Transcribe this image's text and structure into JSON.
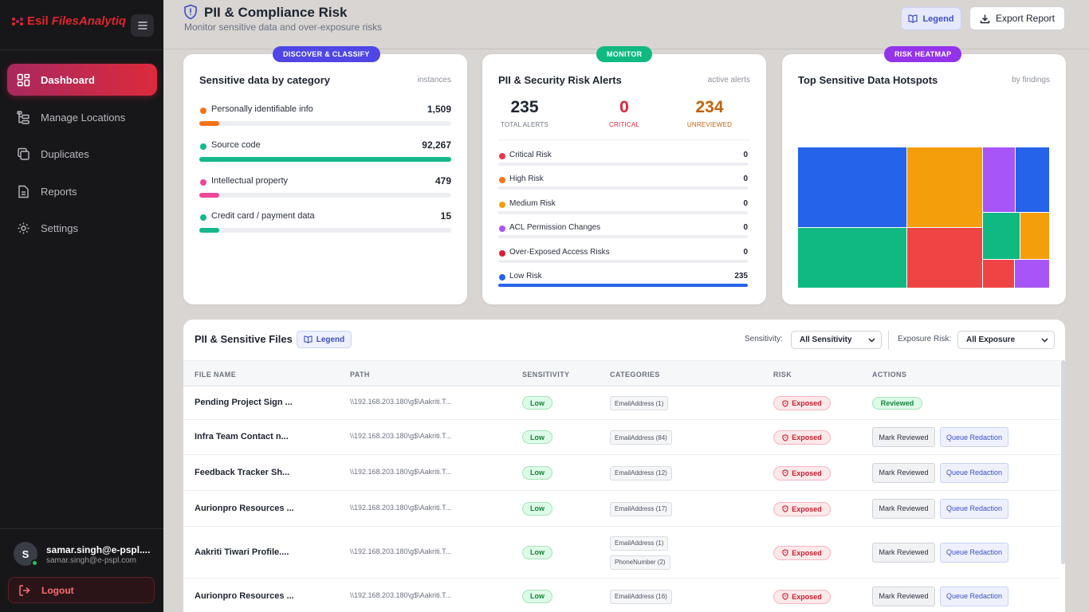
{
  "sidebar": {
    "logo_esi": "Esil",
    "logo_brand": "FilesAnalytiq",
    "nav": [
      {
        "label": "Dashboard",
        "active": true
      },
      {
        "label": "Manage Locations"
      },
      {
        "label": "Duplicates"
      },
      {
        "label": "Reports"
      },
      {
        "label": "Settings"
      }
    ],
    "user": {
      "initial": "S",
      "name": "samar.singh@e-pspl....",
      "email": "samar.singh@e-pspl.com"
    },
    "logout_label": "Logout"
  },
  "header": {
    "title": "PII & Compliance Risk",
    "subtitle": "Monitor sensitive data and over-exposure risks",
    "legend_label": "Legend",
    "export_label": "Export Report"
  },
  "cards": {
    "classify": {
      "pill": "DISCOVER & CLASSIFY",
      "title": "Sensitive data by category",
      "hint": "instances",
      "items": [
        {
          "label": "Personally identifiable info",
          "value": "1,509",
          "fraction": 0.08,
          "color": "#f97316"
        },
        {
          "label": "Source code",
          "value": "92,267",
          "fraction": 1.0,
          "color": "#14b88a"
        },
        {
          "label": "Intellectual property",
          "value": "479",
          "fraction": 0.08,
          "color": "#ec4899"
        },
        {
          "label": "Credit card / payment data",
          "value": "15",
          "fraction": 0.08,
          "color": "#14b88a"
        }
      ]
    },
    "monitor": {
      "pill": "MONITOR",
      "title": "PII & Security Risk Alerts",
      "hint": "active alerts",
      "stats": [
        {
          "value": "235",
          "label": "TOTAL ALERTS",
          "color": "#1e2430",
          "label_color": "#6c7280"
        },
        {
          "value": "0",
          "label": "CRITICAL",
          "color": "#dc2638",
          "label_color": "#dc2638"
        },
        {
          "value": "234",
          "label": "UNREVIEWED",
          "color": "#c2620a",
          "label_color": "#c2620a"
        }
      ],
      "risks": [
        {
          "label": "Critical Risk",
          "value": "0",
          "fraction": 0,
          "color": "#e5384f"
        },
        {
          "label": "High Risk",
          "value": "0",
          "fraction": 0,
          "color": "#f97316"
        },
        {
          "label": "Medium Risk",
          "value": "0",
          "fraction": 0,
          "color": "#f59e0b"
        },
        {
          "label": "ACL Permission Changes",
          "value": "0",
          "fraction": 0,
          "color": "#a855f7"
        },
        {
          "label": "Over-Exposed Access Risks",
          "value": "0",
          "fraction": 0,
          "color": "#dc1f3a"
        },
        {
          "label": "Low Risk",
          "value": "235",
          "fraction": 1.0,
          "color": "#2563eb"
        }
      ]
    },
    "heatmap": {
      "pill": "RISK HEATMAP",
      "title": "Top Sensitive Data Hotspots",
      "hint": "by findings",
      "colors": [
        "#2563eb",
        "#f59e0b",
        "#a855f7",
        "#2563eb",
        "#10b981",
        "#ef4444",
        "#10b981",
        "#f59e0b",
        "#ef4444",
        "#a855f7"
      ]
    }
  },
  "table": {
    "title": "PII & Sensitive Files",
    "legend_label": "Legend",
    "filter_sensitivity_label": "Sensitivity:",
    "filter_sensitivity_value": "All Sensitivity",
    "filter_exposure_label": "Exposure Risk:",
    "filter_exposure_value": "All Exposure",
    "columns": [
      "FILE NAME",
      "PATH",
      "SENSITIVITY",
      "CATEGORIES",
      "RISK",
      "ACTIONS"
    ],
    "mark_reviewed_label": "Mark Reviewed",
    "queue_redaction_label": "Queue Redaction",
    "rows": [
      {
        "name": "Pending Project Sign ...",
        "path": "\\\\192.168.203.180\\g$\\Aakriti.T...",
        "sensitivity": "Low",
        "categories": [
          "EmailAddress (1)"
        ],
        "risk": "Exposed",
        "reviewed": "Reviewed"
      },
      {
        "name": "Infra Team Contact n...",
        "path": "\\\\192.168.203.180\\g$\\Aakriti.T...",
        "sensitivity": "Low",
        "categories": [
          "EmailAddress (84)"
        ],
        "risk": "Exposed"
      },
      {
        "name": "Feedback Tracker Sh...",
        "path": "\\\\192.168.203.180\\g$\\Aakriti.T...",
        "sensitivity": "Low",
        "categories": [
          "EmailAddress (12)"
        ],
        "risk": "Exposed"
      },
      {
        "name": "Aurionpro Resources ...",
        "path": "\\\\192.168.203.180\\g$\\Aakriti.T...",
        "sensitivity": "Low",
        "categories": [
          "EmailAddress (17)"
        ],
        "risk": "Exposed"
      },
      {
        "name": "Aakriti Tiwari Profile....",
        "path": "\\\\192.168.203.180\\g$\\Aakriti.T...",
        "sensitivity": "Low",
        "categories": [
          "EmailAddress (1)",
          "PhoneNumber (2)"
        ],
        "risk": "Exposed"
      },
      {
        "name": "Aurionpro Resources ...",
        "path": "\\\\192.168.203.180\\g$\\Aakriti.T...",
        "sensitivity": "Low",
        "categories": [
          "EmailAddress (16)"
        ],
        "risk": "Exposed"
      }
    ]
  }
}
